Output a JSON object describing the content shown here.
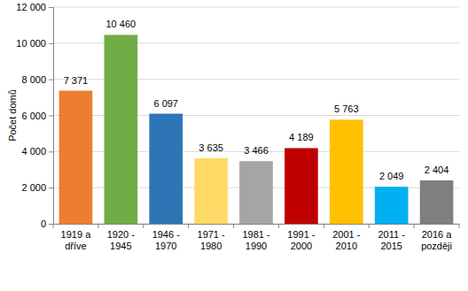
{
  "chart_data": {
    "type": "bar",
    "y_label": "Počet domů",
    "categories": [
      "1919 a dříve",
      "1920 - 1945",
      "1946 - 1970",
      "1971 - 1980",
      "1981 - 1990",
      "1991 - 2000",
      "2001 - 2010",
      "2011 - 2015",
      "2016 a později"
    ],
    "values": [
      7371,
      10460,
      6097,
      3635,
      3466,
      4189,
      5763,
      2049,
      2404
    ],
    "value_labels": [
      "7 371",
      "10 460",
      "6 097",
      "3 635",
      "3 466",
      "4 189",
      "5 763",
      "2 049",
      "2 404"
    ],
    "colors": [
      "#ed7d31",
      "#70ad47",
      "#2e75b6",
      "#ffd966",
      "#a5a5a5",
      "#c00000",
      "#ffc000",
      "#00b0f0",
      "#7f7f7f"
    ],
    "ylim": [
      0,
      12000
    ],
    "yticks": [
      0,
      {
        "value": 2000,
        "label": "2 000"
      },
      {
        "value": 4000,
        "label": "4 000"
      },
      {
        "value": 6000,
        "label": "6 000"
      },
      {
        "value": 8000,
        "label": "8 000"
      },
      {
        "value": 10000,
        "label": "10 000"
      },
      {
        "value": 12000,
        "label": "12 000"
      }
    ],
    "grid": true,
    "data_labels": true
  }
}
